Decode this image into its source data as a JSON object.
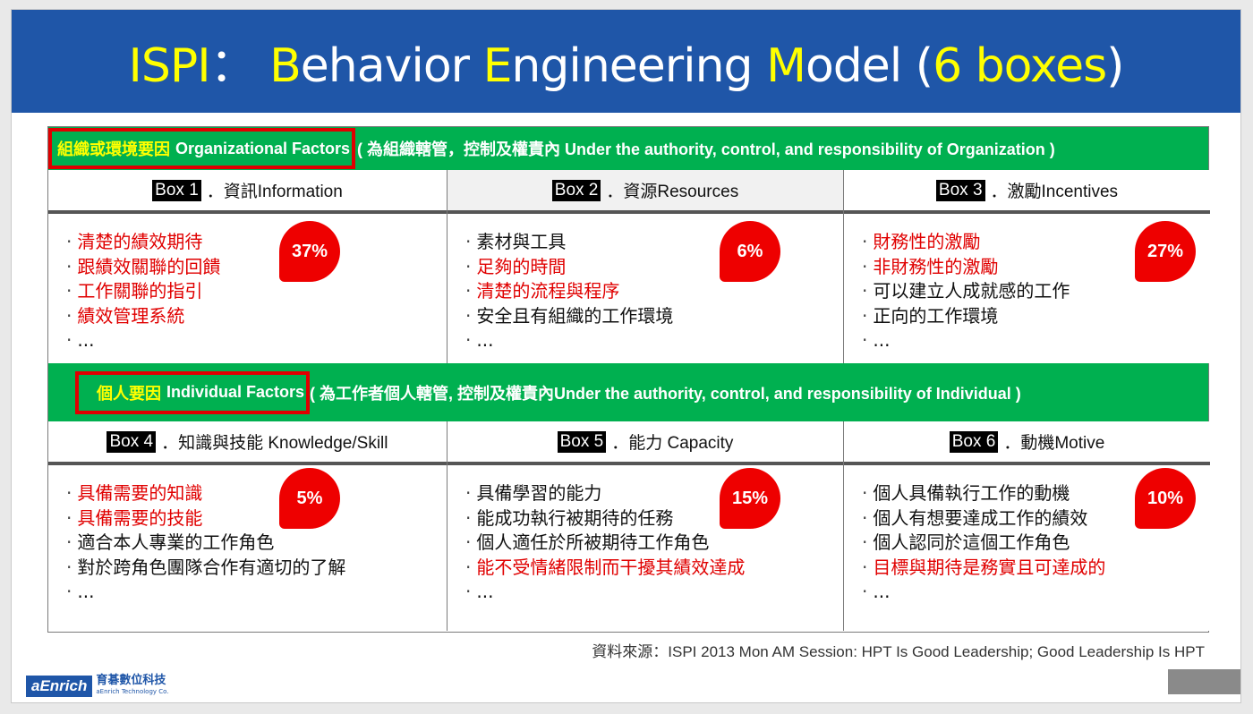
{
  "title": {
    "parts": [
      {
        "text": "ISPI",
        "hl": true
      },
      {
        "text": "： ",
        "hl": false
      },
      {
        "text": "B",
        "hl": true
      },
      {
        "text": "ehavior ",
        "hl": false
      },
      {
        "text": "E",
        "hl": true
      },
      {
        "text": "ngineering ",
        "hl": false
      },
      {
        "text": "M",
        "hl": true
      },
      {
        "text": "odel (",
        "hl": false
      },
      {
        "text": "6 boxes",
        "hl": true
      },
      {
        "text": ")",
        "hl": false
      }
    ]
  },
  "org_band": {
    "cn": "組織或環境要因",
    "en": "Organizational Factors",
    "rest": "( 為組織轄管，控制及權責內 Under the authority, control, and responsibility of Organization )"
  },
  "ind_band": {
    "cn": "個人要因",
    "en": "Individual Factors",
    "rest": "( 為工作者個人轄管, 控制及權責內Under the authority, control, and responsibility of Individual )"
  },
  "boxes": [
    {
      "tag": "Box 1",
      "label": "．資訊Information",
      "pct": "37%",
      "items": [
        {
          "t": "清楚的績效期待",
          "red": true
        },
        {
          "t": "跟績效關聯的回饋",
          "red": true
        },
        {
          "t": "工作關聯的指引",
          "red": true
        },
        {
          "t": "績效管理系統",
          "red": true
        },
        {
          "t": "...",
          "red": false
        }
      ]
    },
    {
      "tag": "Box 2",
      "label": "．資源Resources",
      "pct": "6%",
      "items": [
        {
          "t": "素材與工具",
          "red": false
        },
        {
          "t": "足夠的時間",
          "red": true
        },
        {
          "t": "清楚的流程與程序",
          "red": true
        },
        {
          "t": "安全且有組織的工作環境",
          "red": false
        },
        {
          "t": "...",
          "red": false
        }
      ]
    },
    {
      "tag": "Box 3",
      "label": "．激勵Incentives",
      "pct": "27%",
      "items": [
        {
          "t": "財務性的激勵",
          "red": true
        },
        {
          "t": "非財務性的激勵",
          "red": true
        },
        {
          "t": "可以建立人成就感的工作",
          "red": false
        },
        {
          "t": "正向的工作環境",
          "red": false
        },
        {
          "t": "...",
          "red": false
        }
      ]
    },
    {
      "tag": "Box 4",
      "label": "．知識與技能 Knowledge/Skill",
      "pct": "5%",
      "items": [
        {
          "t": "具備需要的知識",
          "red": true
        },
        {
          "t": "具備需要的技能",
          "red": true
        },
        {
          "t": "適合本人專業的工作角色",
          "red": false
        },
        {
          "t": "對於跨角色團隊合作有適切的了解",
          "red": false
        },
        {
          "t": "...",
          "red": false
        }
      ]
    },
    {
      "tag": "Box 5",
      "label": "．能力 Capacity",
      "pct": "15%",
      "items": [
        {
          "t": "具備學習的能力",
          "red": false
        },
        {
          "t": "能成功執行被期待的任務",
          "red": false
        },
        {
          "t": "個人適任於所被期待工作角色",
          "red": false
        },
        {
          "t": "能不受情緒限制而干擾其績效達成",
          "red": true
        },
        {
          "t": "...",
          "red": false
        }
      ]
    },
    {
      "tag": "Box 6",
      "label": "．動機Motive",
      "pct": "10%",
      "items": [
        {
          "t": "個人具備執行工作的動機",
          "red": false
        },
        {
          "t": "個人有想要達成工作的績效",
          "red": false
        },
        {
          "t": "個人認同於這個工作角色",
          "red": false
        },
        {
          "t": "目標與期待是務實且可達成的",
          "red": true
        },
        {
          "t": "...",
          "red": false
        }
      ]
    }
  ],
  "bullet": "·",
  "source": "資料來源：ISPI 2013 Mon AM Session: HPT Is Good Leadership; Good Leadership Is HPT",
  "logo": {
    "mark": "aEnrich",
    "cn": "育碁數位科技",
    "en": "aEnrich Technology Co."
  },
  "colors": {
    "title_bg": "#1f56a8",
    "band": "#00b050",
    "red": "#e00000",
    "yellow": "#ffff00"
  }
}
